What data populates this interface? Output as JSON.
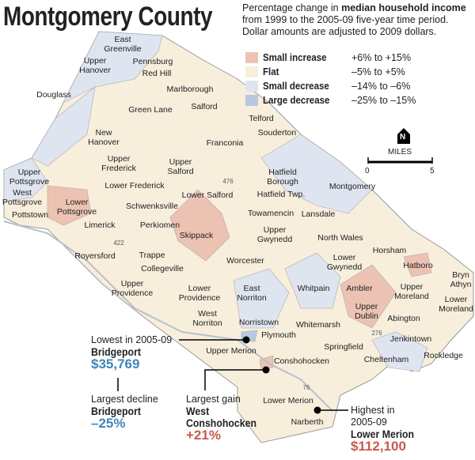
{
  "title": "Montgomery County",
  "intro": {
    "prefix": "Percentage change in ",
    "emphasis": "median household income",
    "suffix": " from 1999 to the 2005-09 five-year time period. Dollar amounts are adjusted to 2009 dollars."
  },
  "legend": [
    {
      "label": "Small increase",
      "range": "+6% to +15%",
      "color": "#ecc3b3"
    },
    {
      "label": "Flat",
      "range": "–5% to +5%",
      "color": "#f8eedc"
    },
    {
      "label": "Small decrease",
      "range": "–14% to –6%",
      "color": "#dfe5f0"
    },
    {
      "label": "Large decrease",
      "range": "–25% to –15%",
      "color": "#b8c8e0"
    }
  ],
  "scale": {
    "north": "N",
    "units": "MILES",
    "min": "0",
    "max": "5"
  },
  "highways": [
    "476",
    "422",
    "276",
    "76"
  ],
  "towns": [
    "East\nGreenville",
    "Upper\nHanover",
    "Pennsburg",
    "Red Hill",
    "Douglass",
    "Marlborough",
    "Green Lane",
    "Salford",
    "New\nHanover",
    "Telford",
    "Souderton",
    "Upper\nFrederick",
    "Upper\nSalford",
    "Franconia",
    "Hatfield\nBorough",
    "Hatfield Twp.",
    "Upper\nPottsgrove",
    "West\nPottsgrove",
    "Lower\nPottsgrove",
    "Pottstown",
    "Lower Frederick",
    "Lower Salford",
    "Schwenksville",
    "Towamencin",
    "Lansdale",
    "Montgomery",
    "Limerick",
    "Perkiomen",
    "Skippack",
    "Upper\nGwynedd",
    "North Wales",
    "Horsham",
    "Royersford",
    "Trappe",
    "Collegeville",
    "Worcester",
    "Lower\nGwynedd",
    "Hatboro",
    "Upper\nProvidence",
    "Lower\nProvidence",
    "East\nNorriton",
    "Whitpain",
    "Ambler",
    "Upper\nDublin",
    "Upper\nMoreland",
    "Bryn\nAthyn",
    "Lower\nMoreland",
    "West\nNorriton",
    "Norristown",
    "Whitemarsh",
    "Abington",
    "Plymouth",
    "Jenkintown",
    "Upper Merion",
    "Springfield",
    "Cheltenham",
    "Rockledge",
    "Conshohocken",
    "Lower Merion",
    "Narberth"
  ],
  "annotations": {
    "lowest": {
      "label": "Lowest in 2005-09",
      "place": "Bridgeport",
      "value": "$35,769"
    },
    "decline": {
      "label": "Largest decline",
      "place": "Bridgeport",
      "value": "–25%"
    },
    "gain": {
      "label": "Largest gain",
      "place": "West\nConshohocken",
      "value": "+21%"
    },
    "highest": {
      "label": "Highest in\n2005-09",
      "place": "Lower Merion",
      "value": "$112,100"
    }
  }
}
